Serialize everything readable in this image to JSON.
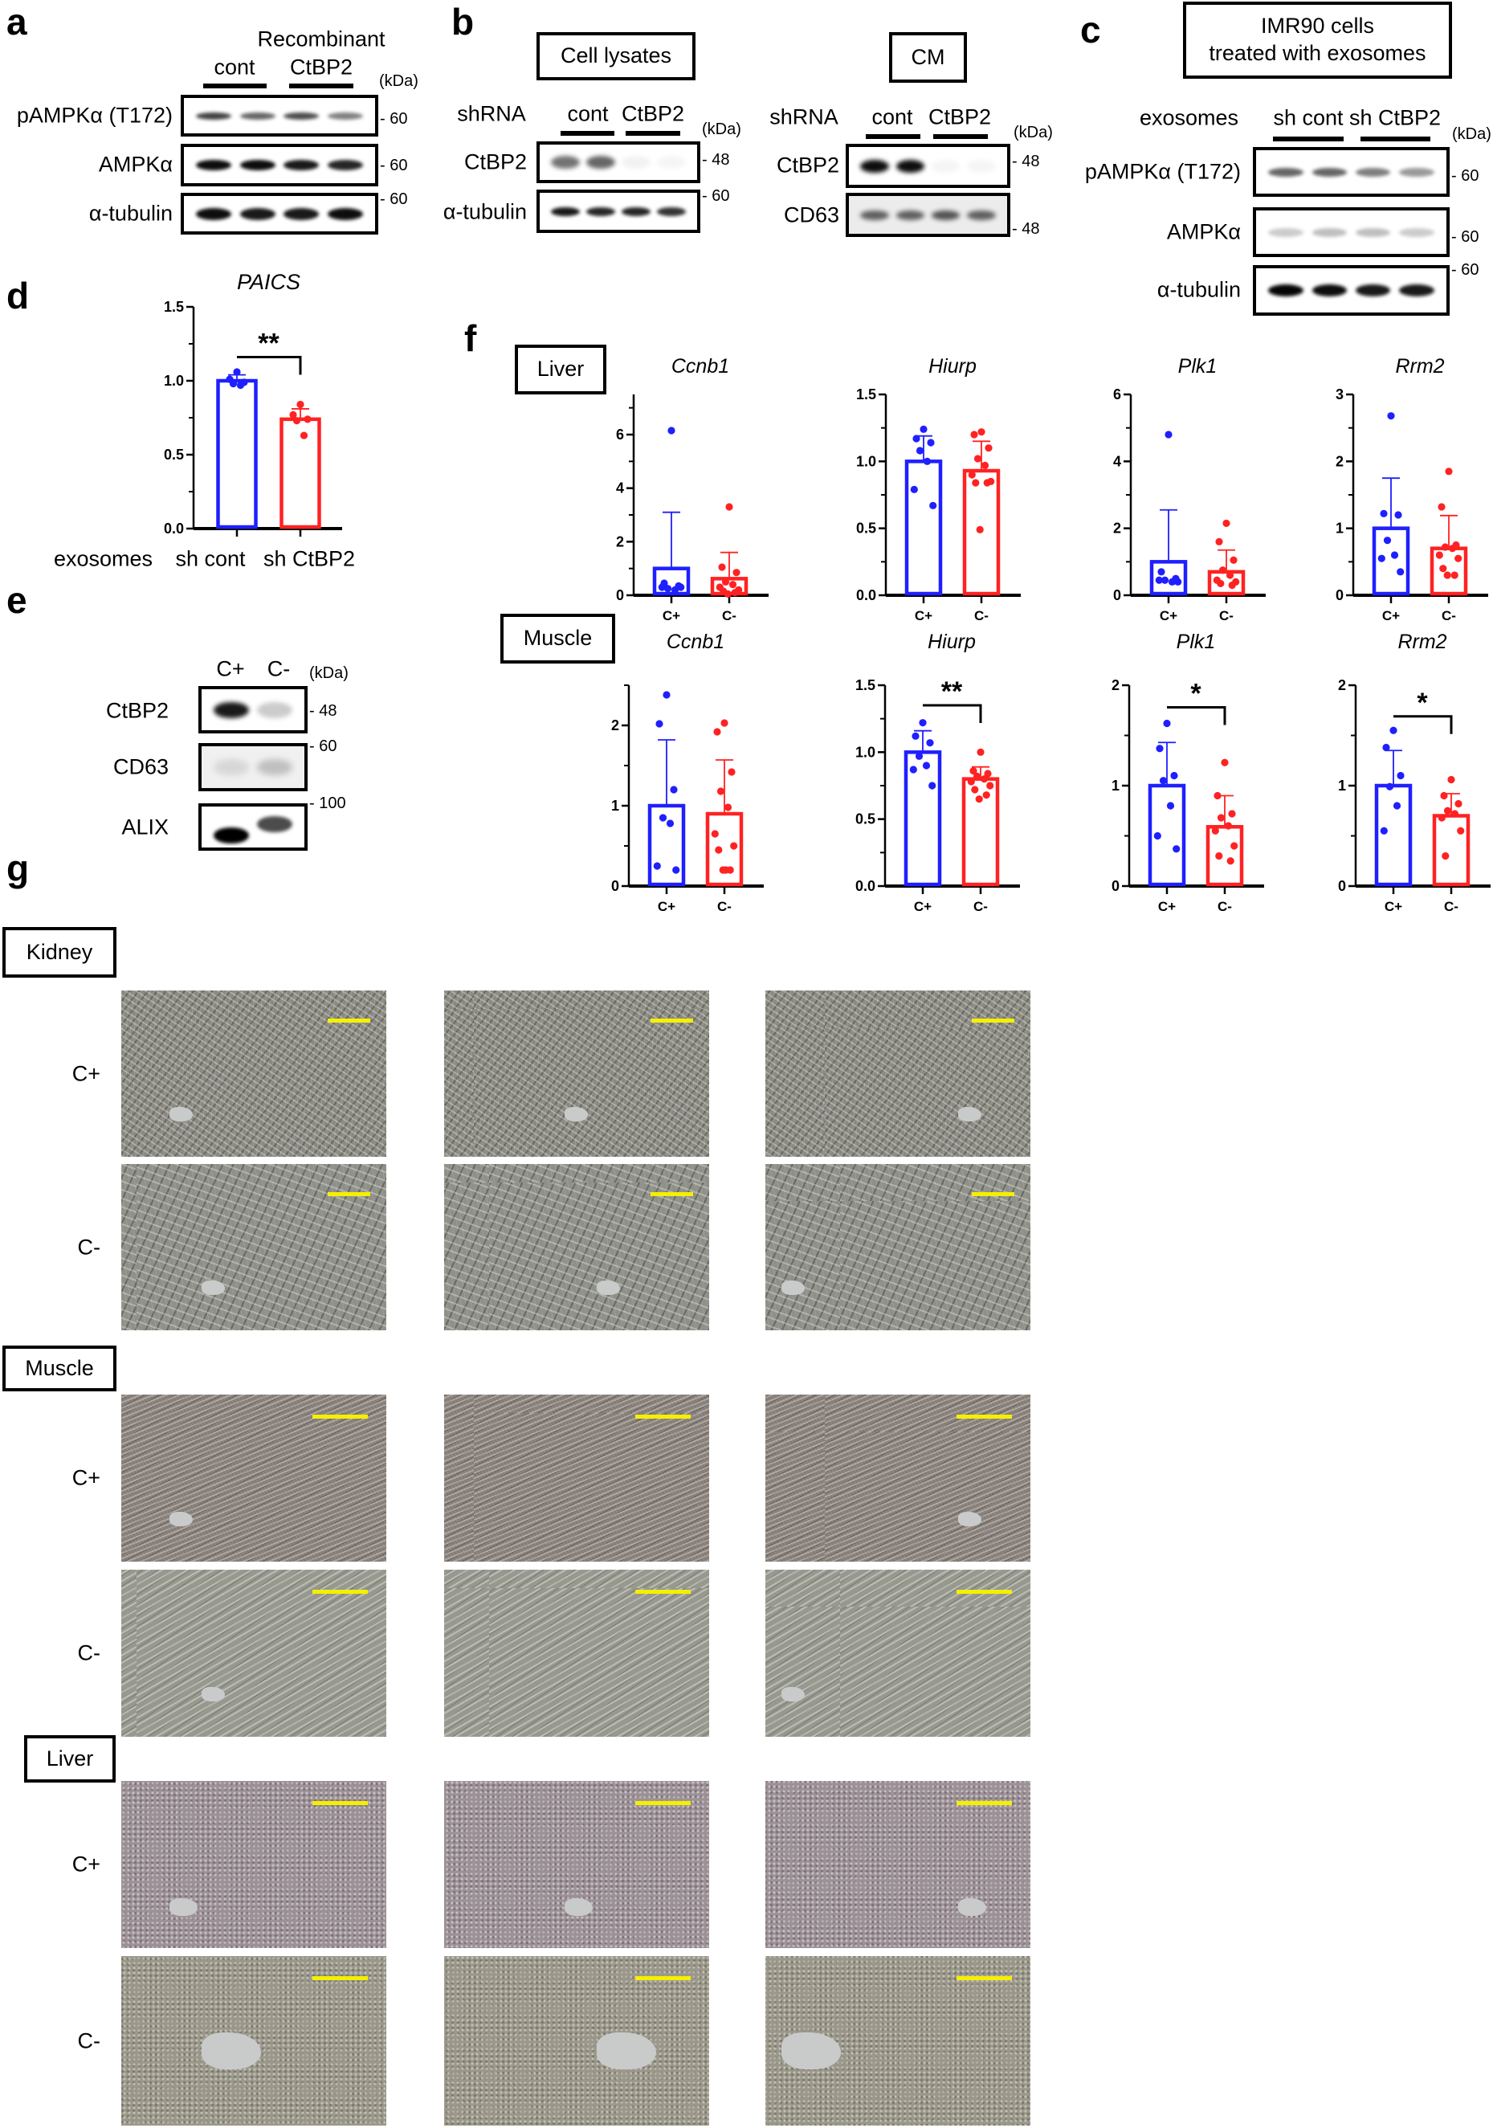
{
  "panel_a": {
    "letter": "a",
    "title": "Recombinant",
    "groups": [
      "cont",
      "CtBP2"
    ],
    "unit": "(kDa)",
    "rows": [
      {
        "label": "pAMPKα (T172)",
        "marker": "60"
      },
      {
        "label": "AMPKα",
        "marker": "60"
      },
      {
        "label": "α-tubulin",
        "marker": "60"
      }
    ]
  },
  "panel_b": {
    "letter": "b",
    "lysates": {
      "title": "Cell lysates",
      "row_header": "shRNA",
      "groups": [
        "cont",
        "CtBP2"
      ],
      "unit": "(kDa)",
      "rows": [
        {
          "label": "CtBP2",
          "marker": "48"
        },
        {
          "label": "α-tubulin",
          "marker": "60"
        }
      ]
    },
    "cm": {
      "title": "CM",
      "row_header": "shRNA",
      "groups": [
        "cont",
        "CtBP2"
      ],
      "unit": "(kDa)",
      "rows": [
        {
          "label": "CtBP2",
          "marker": "48"
        },
        {
          "label": "CD63",
          "marker": "48"
        }
      ]
    }
  },
  "panel_c": {
    "letter": "c",
    "title_line1": "IMR90 cells",
    "title_line2": "treated with exosomes",
    "row_header": "exosomes",
    "groups": [
      "sh cont",
      "sh CtBP2"
    ],
    "unit": "(kDa)",
    "rows": [
      {
        "label": "pAMPKα (T172)",
        "marker": "60"
      },
      {
        "label": "AMPKα",
        "marker": "60"
      },
      {
        "label": "α-tubulin",
        "marker": "60"
      }
    ]
  },
  "panel_d": {
    "letter": "d",
    "row_header": "exosomes",
    "groups": [
      "sh cont",
      "sh CtBP2"
    ]
  },
  "panel_e": {
    "letter": "e",
    "lanes": [
      "C+",
      "C-"
    ],
    "unit": "(kDa)",
    "rows": [
      {
        "label": "CtBP2",
        "marker": "48"
      },
      {
        "label": "CD63",
        "marker": "60"
      },
      {
        "label": "ALIX",
        "marker": "100"
      }
    ]
  },
  "panel_f": {
    "letter": "f",
    "tissues": [
      "Liver",
      "Muscle"
    ]
  },
  "panel_g": {
    "letter": "g",
    "tissues": [
      {
        "name": "Kidney",
        "rows": [
          "C+",
          "C-"
        ]
      },
      {
        "name": "Muscle",
        "rows": [
          "C+",
          "C-"
        ]
      },
      {
        "name": "Liver",
        "rows": [
          "C+",
          "C-"
        ]
      }
    ],
    "scale_bar_color": "#f5ef00"
  },
  "colors": {
    "c_plus": "#1f1fff",
    "c_minus": "#ff2222"
  },
  "chart_data": [
    {
      "id": "d-paics",
      "type": "bar",
      "title": "PAICS",
      "categories": [
        "",
        ""
      ],
      "ylim": [
        0,
        1.5
      ],
      "yticks": [
        "0.0",
        "0.5",
        "1.0",
        "1.5"
      ],
      "yminor": 0.25,
      "series": [
        {
          "mean": 1.0,
          "error_top": 1.04,
          "points": [
            1.06,
            1.01,
            0.99,
            0.98,
            0.97
          ]
        },
        {
          "mean": 0.74,
          "error_top": 0.81,
          "points": [
            0.84,
            0.77,
            0.74,
            0.73,
            0.63
          ]
        }
      ],
      "significance": {
        "label": "**",
        "level": 1.16
      }
    },
    {
      "id": "f-liver-ccnb1",
      "type": "bar",
      "tissue": "Liver",
      "title": "Ccnb1",
      "categories": [
        "C+",
        "C-"
      ],
      "ylim": [
        0,
        7.5
      ],
      "yticks": [
        "0",
        "2",
        "4",
        "6"
      ],
      "yminor": 1,
      "series": [
        {
          "mean": 1.0,
          "error_top": 3.1,
          "points": [
            6.15,
            0.45,
            0.35,
            0.25,
            0.2,
            0.3,
            0.3
          ]
        },
        {
          "mean": 0.62,
          "error_top": 1.6,
          "points": [
            3.3,
            1.05,
            0.85,
            0.5,
            0.4,
            0.3,
            0.2,
            0.15,
            0.1,
            0.05
          ]
        }
      ]
    },
    {
      "id": "f-liver-hiurp",
      "type": "bar",
      "tissue": "Liver",
      "title": "Hiurp",
      "categories": [
        "C+",
        "C-"
      ],
      "ylim": [
        0,
        1.5
      ],
      "yticks": [
        "0.0",
        "0.5",
        "1.0",
        "1.5"
      ],
      "yminor": 0.25,
      "series": [
        {
          "mean": 1.0,
          "error_top": 1.19,
          "points": [
            1.24,
            1.17,
            1.14,
            1.08,
            1.0,
            0.79,
            0.67
          ]
        },
        {
          "mean": 0.93,
          "error_top": 1.15,
          "points": [
            1.22,
            1.2,
            1.1,
            1.02,
            0.97,
            0.9,
            0.85,
            0.84,
            0.84,
            0.49
          ]
        }
      ]
    },
    {
      "id": "f-liver-plk1",
      "type": "bar",
      "tissue": "Liver",
      "title": "Plk1",
      "categories": [
        "C+",
        "C-"
      ],
      "ylim": [
        0,
        6
      ],
      "yticks": [
        "0",
        "2",
        "4",
        "6"
      ],
      "yminor": 1,
      "series": [
        {
          "mean": 1.0,
          "error_top": 2.55,
          "points": [
            4.8,
            0.7,
            0.5,
            0.45,
            0.4,
            0.45,
            0.4
          ]
        },
        {
          "mean": 0.7,
          "error_top": 1.35,
          "points": [
            2.15,
            1.6,
            1.05,
            0.75,
            0.6,
            0.45,
            0.4,
            0.35,
            0.3
          ]
        }
      ]
    },
    {
      "id": "f-liver-rrm2",
      "type": "bar",
      "tissue": "Liver",
      "title": "Rrm2",
      "categories": [
        "C+",
        "C-"
      ],
      "ylim": [
        0,
        3
      ],
      "yticks": [
        "0",
        "1",
        "2",
        "3"
      ],
      "yminor": 0.5,
      "series": [
        {
          "mean": 1.0,
          "error_top": 1.75,
          "points": [
            2.68,
            1.22,
            1.2,
            0.82,
            0.6,
            0.55,
            0.35
          ]
        },
        {
          "mean": 0.7,
          "error_top": 1.19,
          "points": [
            1.85,
            1.32,
            0.75,
            0.72,
            0.7,
            0.6,
            0.55,
            0.4,
            0.3,
            0.3
          ]
        }
      ]
    },
    {
      "id": "f-muscle-ccnb1",
      "type": "bar",
      "tissue": "Muscle",
      "title": "Ccnb1",
      "categories": [
        "C+",
        "C-"
      ],
      "ylim": [
        0,
        2.5
      ],
      "yticks": [
        "0",
        "1",
        "2"
      ],
      "yminor": 0.5,
      "series": [
        {
          "mean": 1.0,
          "error_top": 1.82,
          "points": [
            2.38,
            2.02,
            1.2,
            0.85,
            0.78,
            0.25,
            0.2
          ]
        },
        {
          "mean": 0.9,
          "error_top": 1.57,
          "points": [
            2.03,
            1.92,
            1.42,
            1.18,
            0.98,
            0.65,
            0.5,
            0.45,
            0.2,
            0.2,
            0.2
          ]
        }
      ]
    },
    {
      "id": "f-muscle-hiurp",
      "type": "bar",
      "tissue": "Muscle",
      "title": "Hiurp",
      "categories": [
        "C+",
        "C-"
      ],
      "ylim": [
        0,
        1.5
      ],
      "yticks": [
        "0.0",
        "0.5",
        "1.0",
        "1.5"
      ],
      "yminor": 0.25,
      "series": [
        {
          "mean": 1.0,
          "error_top": 1.16,
          "points": [
            1.22,
            1.12,
            1.07,
            0.97,
            0.9,
            0.87,
            0.75
          ]
        },
        {
          "mean": 0.8,
          "error_top": 0.89,
          "points": [
            1.0,
            0.86,
            0.84,
            0.82,
            0.8,
            0.78,
            0.75,
            0.72,
            0.68,
            0.65
          ]
        }
      ],
      "significance": {
        "label": "**",
        "level": 1.35
      }
    },
    {
      "id": "f-muscle-plk1",
      "type": "bar",
      "tissue": "Muscle",
      "title": "Plk1",
      "categories": [
        "C+",
        "C-"
      ],
      "ylim": [
        0,
        2
      ],
      "yticks": [
        "0",
        "1",
        "2"
      ],
      "yminor": 0.5,
      "series": [
        {
          "mean": 1.0,
          "error_top": 1.43,
          "points": [
            1.62,
            1.37,
            1.1,
            1.05,
            0.8,
            0.5,
            0.37
          ]
        },
        {
          "mean": 0.59,
          "error_top": 0.9,
          "points": [
            1.23,
            0.9,
            0.72,
            0.68,
            0.6,
            0.55,
            0.4,
            0.3,
            0.25
          ]
        }
      ],
      "significance": {
        "label": "*",
        "level": 1.78
      }
    },
    {
      "id": "f-muscle-rrm2",
      "type": "bar",
      "tissue": "Muscle",
      "title": "Rrm2",
      "categories": [
        "C+",
        "C-"
      ],
      "ylim": [
        0,
        2
      ],
      "yticks": [
        "0",
        "1",
        "2"
      ],
      "yminor": 0.5,
      "series": [
        {
          "mean": 1.0,
          "error_top": 1.35,
          "points": [
            1.55,
            1.38,
            1.1,
            0.99,
            0.8,
            0.55
          ]
        },
        {
          "mean": 0.7,
          "error_top": 0.92,
          "points": [
            1.06,
            0.9,
            0.82,
            0.75,
            0.72,
            0.68,
            0.55,
            0.3
          ]
        }
      ],
      "significance": {
        "label": "*",
        "level": 1.69
      }
    }
  ]
}
